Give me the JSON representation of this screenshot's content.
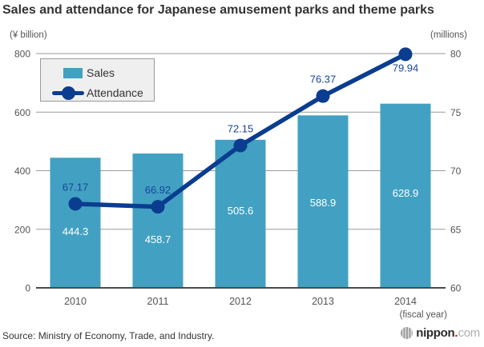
{
  "title": "Sales and attendance for Japanese amusement parks and theme parks",
  "left_axis_unit": "(¥ billion)",
  "right_axis_unit": "(millions)",
  "legend": {
    "sales_label": "Sales",
    "attendance_label": "Attendance"
  },
  "x_axis_note": "(fiscal year)",
  "source": "Source: Ministry of Economy, Trade, and Industry.",
  "logo": {
    "name": "nippon",
    "dot": ".",
    "tld": "com"
  },
  "colors": {
    "bar": "#42a1c2",
    "line": "#0a3d8f",
    "attendance_label_text": "#17459c",
    "bar_label_text": "#ffffff",
    "grid": "#999999",
    "baseline": "#4a4a4a",
    "axis_text": "#555555",
    "logo_red": "#e60012"
  },
  "chart_data": {
    "type": "bar",
    "categories": [
      "2010",
      "2011",
      "2012",
      "2013",
      "2014"
    ],
    "series": [
      {
        "name": "Sales",
        "type": "bar",
        "axis": "left",
        "values": [
          444.3,
          458.7,
          505.6,
          588.9,
          628.9
        ]
      },
      {
        "name": "Attendance",
        "type": "line",
        "axis": "right",
        "values": [
          67.17,
          66.92,
          72.15,
          76.37,
          79.94
        ]
      }
    ],
    "left_axis": {
      "label": "(¥ billion)",
      "ticks": [
        0,
        200,
        400,
        600,
        800
      ],
      "range": [
        0,
        800
      ]
    },
    "right_axis": {
      "label": "(millions)",
      "ticks": [
        60,
        65,
        70,
        75,
        80
      ],
      "range": [
        60,
        80
      ]
    },
    "grid": true,
    "legend_position": "top-left"
  }
}
